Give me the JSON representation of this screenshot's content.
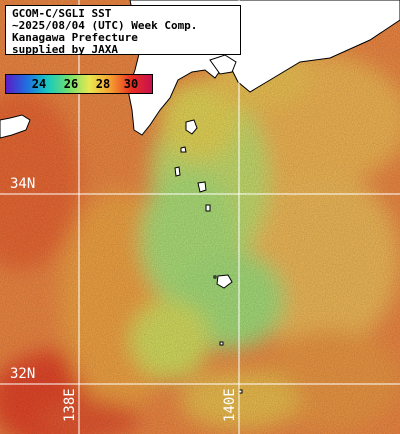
{
  "title_lines": [
    "GCOM-C/SGLI SST",
    "~2025/08/04 (UTC) Week Comp.",
    "Kanagawa Prefecture",
    "supplied by JAXA"
  ],
  "colorbar": {
    "ticks": [
      "24",
      "26",
      "28",
      "30"
    ],
    "colors": [
      "#5a1cc8",
      "#1f6fe0",
      "#18c8c0",
      "#6fe070",
      "#e8e850",
      "#f5a030",
      "#e83020",
      "#c81050"
    ]
  },
  "grid_labels": {
    "lat_34": "34N",
    "lat_32": "32N",
    "lon_138": "138E",
    "lon_140": "140E"
  },
  "colors": {
    "land": "#ffffff",
    "coast": "#000000",
    "grid": "#ffffff",
    "sea_warm": "#f08040",
    "sea_mid": "#f0c050",
    "sea_cool": "#a0e070"
  }
}
